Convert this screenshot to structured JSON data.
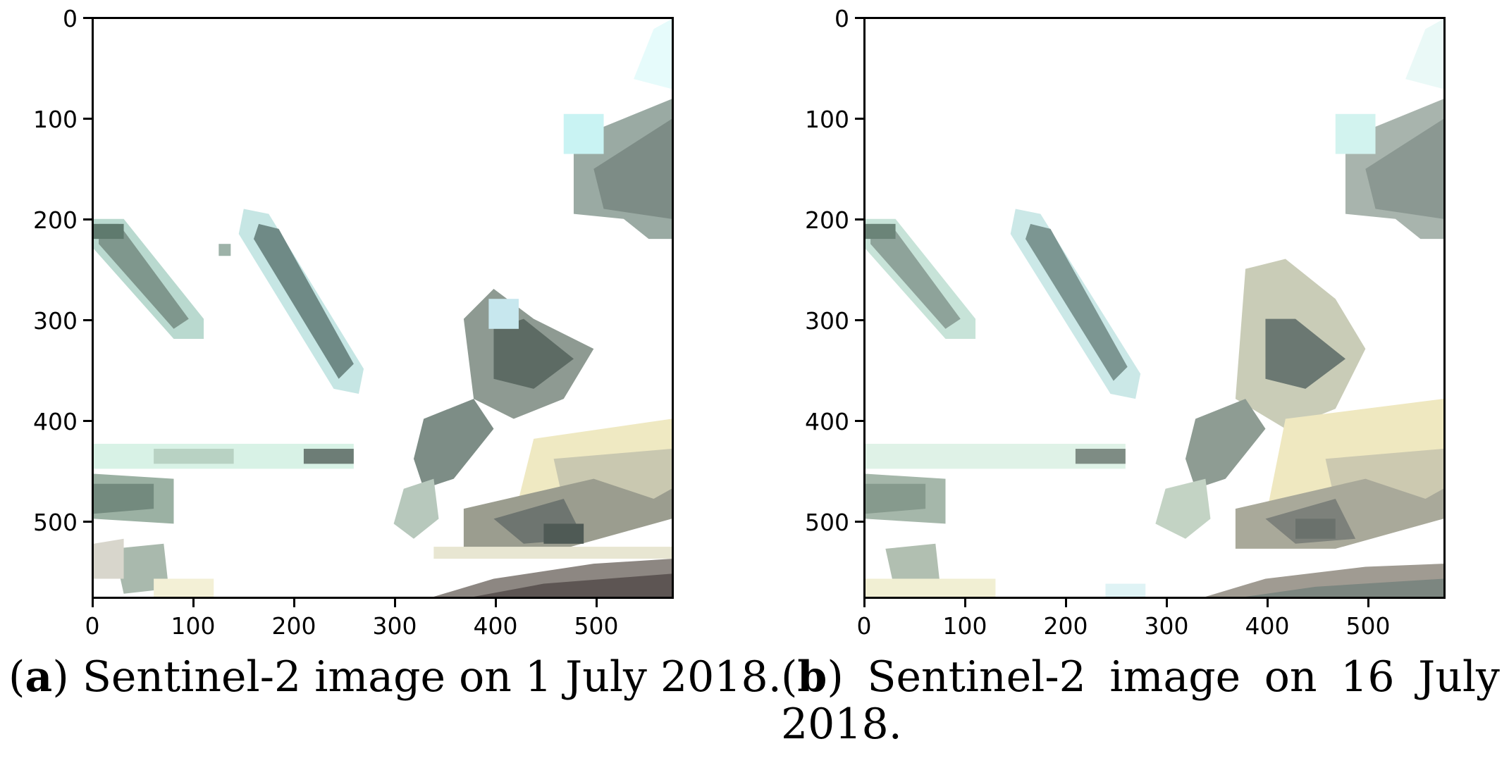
{
  "panels": [
    {
      "id": "a",
      "label_open": "(",
      "label_letter": "a",
      "label_close": ")",
      "caption": "Sentinel-2 image on 1 July 2018."
    },
    {
      "id": "b",
      "label_open": "(",
      "label_letter": "b",
      "label_close": ")",
      "caption_words": [
        "Sentinel-2",
        "image",
        "on",
        "16",
        "July"
      ],
      "caption_line2": "2018."
    }
  ],
  "axis": {
    "y_ticks": [
      "0",
      "100",
      "200",
      "300",
      "400",
      "500"
    ],
    "x_ticks": [
      "0",
      "100",
      "200",
      "300",
      "400",
      "500"
    ],
    "extent": [
      0,
      578
    ]
  },
  "colors": {
    "dark": "#5f6f66",
    "mid": "#8e9c95",
    "cyan": "#c8f4f0",
    "yellow": "#f3f0c8",
    "brown": "#6b625e"
  }
}
